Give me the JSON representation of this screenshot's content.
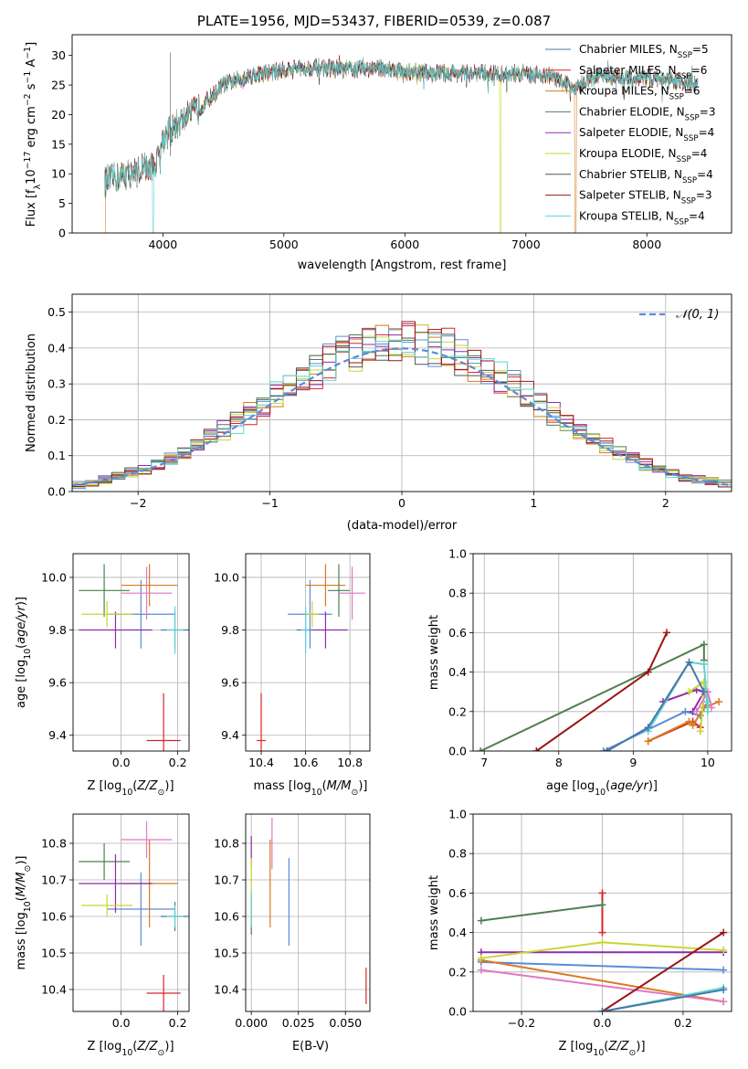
{
  "chart_data": [
    {
      "type": "line",
      "title": "PLATE=1956, MJD=53437, FIBERID=0539, z=0.087",
      "xlabel": "wavelength [Angstrom, rest frame]",
      "ylabel": "Flux [fλ10⁻¹⁷ erg cm⁻² s⁻¹ A⁻¹]",
      "xlim": [
        3250,
        8700
      ],
      "ylim": [
        0,
        33.5
      ],
      "xticks": [
        4000,
        5000,
        6000,
        7000,
        8000
      ],
      "yticks": [
        0,
        5,
        10,
        15,
        20,
        25,
        30
      ],
      "grid": false,
      "legend": "upper-right",
      "spectrum_anchors": {
        "wavelength": [
          3500,
          3700,
          3900,
          3950,
          4000,
          4150,
          4300,
          4500,
          4700,
          4900,
          5100,
          5300,
          5500,
          5800,
          6000,
          6300,
          6600,
          6800,
          7000,
          7200,
          7400,
          7600,
          7800,
          8000,
          8200,
          8400
        ],
        "flux": [
          8.5,
          10.0,
          11.0,
          12.0,
          16.0,
          19.0,
          21.0,
          25.0,
          26.5,
          27.2,
          27.8,
          28.0,
          27.6,
          27.9,
          27.2,
          27.0,
          27.0,
          26.8,
          27.0,
          26.5,
          24.5,
          26.6,
          26.0,
          26.3,
          25.7,
          25.2
        ]
      },
      "series": [
        {
          "name": "Chabrier MILES, N_SSP=5",
          "color": "#4878a8",
          "range": [
            3520,
            8420
          ],
          "dips": []
        },
        {
          "name": "Salpeter MILES, N_SSP=6",
          "color": "#d62728",
          "range": [
            3520,
            8420
          ],
          "dips": []
        },
        {
          "name": "Kroupa MILES, N_SSP=6",
          "color": "#d87a20",
          "range": [
            3520,
            8420
          ],
          "dips": [
            3520,
            7410
          ]
        },
        {
          "name": "Chabrier ELODIE, N_SSP=3",
          "color": "#4f7f4f",
          "range": [
            3520,
            8420
          ],
          "dips": []
        },
        {
          "name": "Salpeter ELODIE, N_SSP=4",
          "color": "#8e2bab",
          "range": [
            3520,
            8420
          ],
          "dips": []
        },
        {
          "name": "Kroupa ELODIE, N_SSP=4",
          "color": "#c9d633",
          "range": [
            3520,
            8420
          ],
          "dips": [
            6790
          ]
        },
        {
          "name": "Chabrier STELIB, N_SSP=4",
          "color": "#555555",
          "range": [
            3520,
            8420
          ],
          "dips": []
        },
        {
          "name": "Salpeter STELIB, N_SSP=3",
          "color": "#9a1515",
          "range": [
            3520,
            8420
          ],
          "dips": []
        },
        {
          "name": "Kroupa STELIB, N_SSP=4",
          "color": "#5fd3d3",
          "range": [
            3520,
            8420
          ],
          "dips": [
            3920
          ]
        }
      ],
      "legend_entries": [
        [
          "Chabrier MILES, N",
          "SSP",
          "=5"
        ],
        [
          "Salpeter MILES, N",
          "SSP",
          "=6"
        ],
        [
          "Kroupa MILES, N",
          "SSP",
          "=6"
        ],
        [
          "Chabrier ELODIE, N",
          "SSP",
          "=3"
        ],
        [
          "Salpeter ELODIE, N",
          "SSP",
          "=4"
        ],
        [
          "Kroupa ELODIE, N",
          "SSP",
          "=4"
        ],
        [
          "Chabrier STELIB, N",
          "SSP",
          "=4"
        ],
        [
          "Salpeter STELIB, N",
          "SSP",
          "=3"
        ],
        [
          "Kroupa STELIB, N",
          "SSP",
          "=4"
        ]
      ]
    },
    {
      "type": "histogram",
      "xlabel": "(data-model)/error",
      "ylabel": "Normed distribution",
      "xlim": [
        -2.5,
        2.5
      ],
      "ylim": [
        0,
        0.55
      ],
      "xticks": [
        -2,
        -1,
        0,
        1,
        2
      ],
      "yticks": [
        0.0,
        0.1,
        0.2,
        0.3,
        0.4,
        0.5
      ],
      "grid": true,
      "legend": "upper-right",
      "bin_width": 0.1,
      "bin_start": -2.5,
      "gaussian": {
        "label": "𝒩(0, 1)",
        "color": "#5b8bd6"
      },
      "series_colors": [
        "#5b8bd6",
        "#d62728",
        "#d87a20",
        "#4f7f4f",
        "#8e2bab",
        "#c9d633",
        "#555555",
        "#9a1515",
        "#5fd3d3"
      ]
    },
    {
      "type": "scatter",
      "subtype": "errorbar",
      "xlabel": "Z [log10(Z/Z⊙)]",
      "ylabel": "age [log10(age/yr)]",
      "xlim": [
        -0.17,
        0.24
      ],
      "ylim": [
        9.34,
        10.09
      ],
      "xticks": [
        0.0,
        0.2
      ],
      "yticks": [
        9.4,
        9.6,
        9.8,
        10.0
      ],
      "points": [
        {
          "x": 0.07,
          "y": 9.86,
          "xerr": 0.12,
          "yerr": 0.13,
          "color": "#5b8bd6"
        },
        {
          "x": 0.15,
          "y": 9.38,
          "xerr": 0.06,
          "yerr": 0.18,
          "color": "#d62728"
        },
        {
          "x": 0.1,
          "y": 9.97,
          "xerr": 0.1,
          "yerr": 0.08,
          "color": "#d87a20"
        },
        {
          "x": -0.06,
          "y": 9.95,
          "xerr": 0.09,
          "yerr": 0.1,
          "color": "#4f7f4f"
        },
        {
          "x": -0.02,
          "y": 9.8,
          "xerr": 0.13,
          "yerr": 0.07,
          "color": "#8e2bab"
        },
        {
          "x": -0.05,
          "y": 9.86,
          "xerr": 0.09,
          "yerr": 0.05,
          "color": "#c9d633"
        },
        {
          "x": 0.09,
          "y": 9.94,
          "xerr": 0.09,
          "yerr": 0.1,
          "color": "#e377c2"
        },
        {
          "x": 0.19,
          "y": 9.8,
          "xerr": 0.05,
          "yerr": 0.07,
          "color": "#4878a8"
        },
        {
          "x": 0.19,
          "y": 9.8,
          "xerr": 0.03,
          "yerr": 0.09,
          "color": "#5fd3d3"
        }
      ]
    },
    {
      "type": "scatter",
      "subtype": "errorbar",
      "xlabel": "mass [log10(M/M⊙)]",
      "xlim": [
        10.33,
        10.89
      ],
      "ylim": [
        9.34,
        10.09
      ],
      "xticks": [
        10.4,
        10.6,
        10.8
      ],
      "yticks": [
        9.4,
        9.6,
        9.8,
        10.0
      ],
      "points": [
        {
          "x": 10.62,
          "y": 9.86,
          "xerr": 0.1,
          "yerr": 0.13,
          "color": "#5b8bd6"
        },
        {
          "x": 10.4,
          "y": 9.38,
          "xerr": 0.02,
          "yerr": 0.18,
          "color": "#d62728"
        },
        {
          "x": 10.69,
          "y": 9.97,
          "xerr": 0.09,
          "yerr": 0.08,
          "color": "#d87a20"
        },
        {
          "x": 10.75,
          "y": 9.95,
          "xerr": 0.05,
          "yerr": 0.1,
          "color": "#4f7f4f"
        },
        {
          "x": 10.69,
          "y": 9.8,
          "xerr": 0.1,
          "yerr": 0.07,
          "color": "#8e2bab"
        },
        {
          "x": 10.63,
          "y": 9.86,
          "xerr": 0.03,
          "yerr": 0.05,
          "color": "#c9d633"
        },
        {
          "x": 10.81,
          "y": 9.94,
          "xerr": 0.06,
          "yerr": 0.1,
          "color": "#e377c2"
        },
        {
          "x": 10.6,
          "y": 9.8,
          "xerr": 0.04,
          "yerr": 0.07,
          "color": "#4878a8"
        },
        {
          "x": 10.6,
          "y": 9.8,
          "xerr": 0.02,
          "yerr": 0.09,
          "color": "#5fd3d3"
        }
      ]
    },
    {
      "type": "line",
      "xlabel": "age [log10(age/yr)]",
      "ylabel": "mass weight",
      "xlim": [
        6.85,
        10.32
      ],
      "ylim": [
        0,
        1.0
      ],
      "xticks": [
        7,
        8,
        9,
        10
      ],
      "yticks": [
        0.0,
        0.2,
        0.4,
        0.6,
        0.8,
        1.0
      ],
      "grid": true,
      "series": [
        {
          "color": "#5b8bd6",
          "x": [
            8.6,
            9.7,
            9.9,
            10.0
          ],
          "y": [
            0.0,
            0.2,
            0.18,
            0.25
          ]
        },
        {
          "color": "#d62728",
          "x": [
            9.2,
            9.8,
            9.9
          ],
          "y": [
            0.05,
            0.15,
            0.12
          ]
        },
        {
          "color": "#d87a20",
          "x": [
            9.2,
            9.75,
            9.8,
            9.95,
            10.15
          ],
          "y": [
            0.05,
            0.15,
            0.13,
            0.22,
            0.25
          ]
        },
        {
          "color": "#4f7f4f",
          "x": [
            6.95,
            9.95,
            9.95
          ],
          "y": [
            0.0,
            0.54,
            0.46
          ]
        },
        {
          "color": "#8e2bab",
          "x": [
            9.4,
            9.85,
            9.95,
            9.8
          ],
          "y": [
            0.25,
            0.31,
            0.3,
            0.2
          ]
        },
        {
          "color": "#c9d633",
          "x": [
            9.75,
            9.95,
            9.95,
            9.9
          ],
          "y": [
            0.3,
            0.35,
            0.28,
            0.1
          ]
        },
        {
          "color": "#e377c2",
          "x": [
            9.85,
            10.0,
            10.05
          ],
          "y": [
            0.2,
            0.3,
            0.22
          ]
        },
        {
          "color": "#9a1515",
          "x": [
            7.7,
            9.2,
            9.45
          ],
          "y": [
            0.0,
            0.4,
            0.6
          ]
        },
        {
          "color": "#5fd3d3",
          "x": [
            9.2,
            9.75,
            9.95,
            10.0,
            10.0
          ],
          "y": [
            0.1,
            0.45,
            0.44,
            0.2,
            0.25
          ]
        },
        {
          "color": "#4878a8",
          "x": [
            8.65,
            9.2,
            9.75,
            9.95
          ],
          "y": [
            0.0,
            0.12,
            0.45,
            0.3
          ]
        }
      ]
    },
    {
      "type": "scatter",
      "subtype": "errorbar",
      "xlabel": "Z [log10(Z/Z⊙)]",
      "ylabel": "mass [log10(M/M⊙)]",
      "xlim": [
        -0.17,
        0.24
      ],
      "ylim": [
        10.34,
        10.88
      ],
      "xticks": [
        0.0,
        0.2
      ],
      "yticks": [
        10.4,
        10.5,
        10.6,
        10.7,
        10.8
      ],
      "points": [
        {
          "x": 0.07,
          "y": 10.62,
          "xerr": 0.12,
          "yerr": 0.1,
          "color": "#5b8bd6"
        },
        {
          "x": 0.15,
          "y": 10.39,
          "xerr": 0.06,
          "yerr": 0.05,
          "color": "#d62728"
        },
        {
          "x": 0.1,
          "y": 10.69,
          "xerr": 0.1,
          "yerr": 0.12,
          "color": "#d87a20"
        },
        {
          "x": -0.06,
          "y": 10.75,
          "xerr": 0.09,
          "yerr": 0.05,
          "color": "#4f7f4f"
        },
        {
          "x": -0.02,
          "y": 10.69,
          "xerr": 0.13,
          "yerr": 0.08,
          "color": "#8e2bab"
        },
        {
          "x": -0.05,
          "y": 10.63,
          "xerr": 0.09,
          "yerr": 0.03,
          "color": "#c9d633"
        },
        {
          "x": 0.09,
          "y": 10.81,
          "xerr": 0.09,
          "yerr": 0.05,
          "color": "#e377c2"
        },
        {
          "x": 0.19,
          "y": 10.6,
          "xerr": 0.05,
          "yerr": 0.04,
          "color": "#4878a8"
        },
        {
          "x": 0.19,
          "y": 10.6,
          "xerr": 0.03,
          "yerr": 0.03,
          "color": "#5fd3d3"
        }
      ]
    },
    {
      "type": "scatter",
      "subtype": "errorbar",
      "xlabel": "E(B-V)",
      "xlim": [
        -0.003,
        0.063
      ],
      "ylim": [
        10.34,
        10.88
      ],
      "xticks": [
        0.0,
        0.025,
        0.05
      ],
      "yticks": [
        10.4,
        10.5,
        10.6,
        10.7,
        10.8
      ],
      "points": [
        {
          "x": 0.02,
          "y": 10.64,
          "xerr": 0,
          "yerr": 0.12,
          "color": "#5b8bd6"
        },
        {
          "x": 0.061,
          "y": 10.41,
          "xerr": 0,
          "yerr": 0.05,
          "color": "#d62728"
        },
        {
          "x": 0.01,
          "y": 10.69,
          "xerr": 0,
          "yerr": 0.12,
          "color": "#d87a20"
        },
        {
          "x": 0.0,
          "y": 10.6,
          "xerr": 0,
          "yerr": 0.05,
          "color": "#4f7f4f"
        },
        {
          "x": 0.0,
          "y": 10.78,
          "xerr": 0,
          "yerr": 0.04,
          "color": "#8e2bab"
        },
        {
          "x": 0.0,
          "y": 10.67,
          "xerr": 0,
          "yerr": 0.09,
          "color": "#c9d633"
        },
        {
          "x": 0.011,
          "y": 10.8,
          "xerr": 0,
          "yerr": 0.07,
          "color": "#e377c2"
        },
        {
          "x": 0.0,
          "y": 10.62,
          "xerr": 0,
          "yerr": 0.05,
          "color": "#5fd3d3"
        }
      ]
    },
    {
      "type": "line",
      "xlabel": "Z [log10(Z/Z⊙)]",
      "ylabel": "mass weight",
      "xlim": [
        -0.32,
        0.32
      ],
      "ylim": [
        0,
        1.0
      ],
      "xticks": [
        -0.2,
        0.0,
        0.2
      ],
      "yticks": [
        0.0,
        0.2,
        0.4,
        0.6,
        0.8,
        1.0
      ],
      "grid": true,
      "series": [
        {
          "color": "#5b8bd6",
          "x": [
            -0.3,
            0.3
          ],
          "y": [
            0.25,
            0.21
          ]
        },
        {
          "color": "#d62728",
          "x": [
            0.0,
            0.0
          ],
          "y": [
            0.4,
            0.6
          ]
        },
        {
          "color": "#d87a20",
          "x": [
            -0.3,
            0.3
          ],
          "y": [
            0.26,
            0.05
          ]
        },
        {
          "color": "#4f7f4f",
          "x": [
            -0.3,
            0.0
          ],
          "y": [
            0.46,
            0.54
          ]
        },
        {
          "color": "#8e2bab",
          "x": [
            -0.3,
            0.3
          ],
          "y": [
            0.3,
            0.3
          ]
        },
        {
          "color": "#c9d633",
          "x": [
            -0.3,
            0.0,
            0.3
          ],
          "y": [
            0.27,
            0.35,
            0.31
          ]
        },
        {
          "color": "#e377c2",
          "x": [
            -0.3,
            0.3
          ],
          "y": [
            0.21,
            0.05
          ]
        },
        {
          "color": "#9a1515",
          "x": [
            0.0,
            0.3
          ],
          "y": [
            0.0,
            0.4
          ]
        },
        {
          "color": "#5fd3d3",
          "x": [
            0.0,
            0.3
          ],
          "y": [
            0.0,
            0.12
          ]
        },
        {
          "color": "#4878a8",
          "x": [
            0.0,
            0.3
          ],
          "y": [
            0.0,
            0.11
          ]
        }
      ]
    }
  ]
}
